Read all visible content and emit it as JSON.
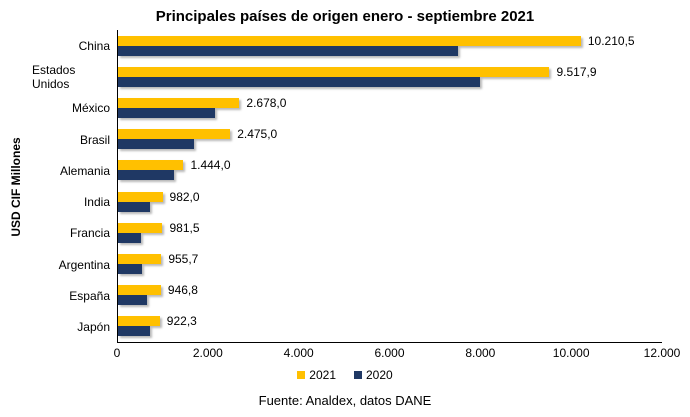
{
  "title": "Principales países de origen enero - septiembre 2021",
  "y_axis_label": "USD CIF Millones",
  "source": "Fuente: Analdex, datos DANE",
  "colors": {
    "bar_2021": "#FFC000",
    "bar_2020": "#1F3864",
    "axis": "#000000",
    "text": "#000000",
    "background": "#FFFFFF"
  },
  "chart_data": {
    "type": "bar",
    "orientation": "horizontal",
    "title": "Principales países de origen enero - septiembre 2021",
    "ylabel": "USD CIF Millones",
    "xlabel": "",
    "grid": false,
    "legend_position": "bottom",
    "xlim": [
      0,
      12000
    ],
    "x_ticks": [
      "0",
      "2.000",
      "4.000",
      "6.000",
      "8.000",
      "10.000",
      "12.000"
    ],
    "categories": [
      "China",
      "Estados Unidos",
      "México",
      "Brasil",
      "Alemania",
      "India",
      "Francia",
      "Argentina",
      "España",
      "Japón"
    ],
    "series": [
      {
        "name": "2021",
        "color": "#FFC000",
        "values": [
          10210.5,
          9517.9,
          2678.0,
          2475.0,
          1444.0,
          982.0,
          981.5,
          955.7,
          946.8,
          922.3
        ],
        "data_labels": [
          "10.210,5",
          "9.517,9",
          "2.678,0",
          "2.475,0",
          "1.444,0",
          "982,0",
          "981,5",
          "955,7",
          "946,8",
          "922,3"
        ]
      },
      {
        "name": "2020",
        "color": "#1F3864",
        "values": [
          7500,
          7980,
          2150,
          1670,
          1240,
          700,
          510,
          540,
          630,
          700
        ]
      }
    ]
  }
}
